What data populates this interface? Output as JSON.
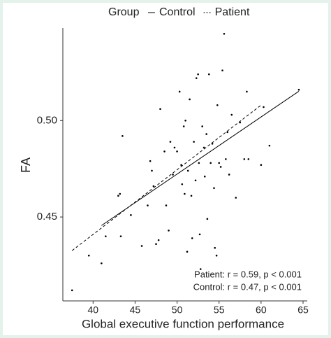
{
  "chart_data": {
    "type": "scatter",
    "legend_title": "Group",
    "legend_position": "top",
    "x_label": "Global executive function performance",
    "y_label": "FA",
    "xlim": [
      36.4,
      65.5
    ],
    "ylim": [
      0.4065,
      0.548
    ],
    "xticks": [
      40,
      45,
      50,
      55,
      60,
      65
    ],
    "yticks": [
      0.45,
      {
        "value": 0.5,
        "label": "0.50"
      }
    ],
    "grid": false,
    "series": [
      {
        "name": "Control",
        "color": "#000000",
        "dash": "solid",
        "x": [
          41,
          64.5
        ],
        "values": [
          0.4456,
          0.5152
        ]
      },
      {
        "name": "Patient",
        "color": "#000000",
        "dash": "dashed",
        "x": [
          37.5,
          60
        ],
        "values": [
          0.4326,
          0.508
        ]
      }
    ],
    "points": {
      "color": "#000000",
      "x": [
        37.5,
        39.5,
        41,
        41.5,
        43,
        43.2,
        43.5,
        43.3,
        44.5,
        45.8,
        46.5,
        46.8,
        47,
        47.2,
        47.5,
        47.8,
        48,
        48.5,
        48.7,
        49,
        49.2,
        49.5,
        49.7,
        50,
        50.3,
        50.5,
        50.6,
        50.8,
        50.9,
        51,
        51.2,
        51.3,
        51.5,
        51.7,
        51.8,
        52,
        52.2,
        52.3,
        52.5,
        52.6,
        52.7,
        52.8,
        53,
        53.2,
        53.3,
        53.5,
        53.6,
        53.8,
        54,
        54.2,
        54.4,
        54.5,
        54.7,
        54.8,
        55,
        55.2,
        55.4,
        55.6,
        55.8,
        56,
        56.2,
        56.5,
        57,
        57.5,
        58,
        58.3,
        58.5,
        60,
        60.3,
        61,
        64.5
      ],
      "values": [
        0.412,
        0.43,
        0.426,
        0.44,
        0.461,
        0.462,
        0.492,
        0.44,
        0.451,
        0.435,
        0.456,
        0.479,
        0.474,
        0.466,
        0.436,
        0.438,
        0.506,
        0.484,
        0.456,
        0.443,
        0.489,
        0.472,
        0.486,
        0.484,
        0.515,
        0.477,
        0.467,
        0.497,
        0.462,
        0.5,
        0.432,
        0.474,
        0.511,
        0.461,
        0.439,
        0.489,
        0.469,
        0.522,
        0.524,
        0.478,
        0.441,
        0.423,
        0.497,
        0.486,
        0.471,
        0.493,
        0.449,
        0.524,
        0.478,
        0.488,
        0.465,
        0.434,
        0.43,
        0.508,
        0.478,
        0.476,
        0.526,
        0.545,
        0.48,
        0.494,
        0.472,
        0.503,
        0.46,
        0.499,
        0.48,
        0.515,
        0.48,
        0.477,
        0.507,
        0.487,
        0.516
      ]
    },
    "annotations": [
      "Patient: r = 0.59, p < 0.001",
      "Control: r = 0.47, p < 0.001"
    ]
  }
}
